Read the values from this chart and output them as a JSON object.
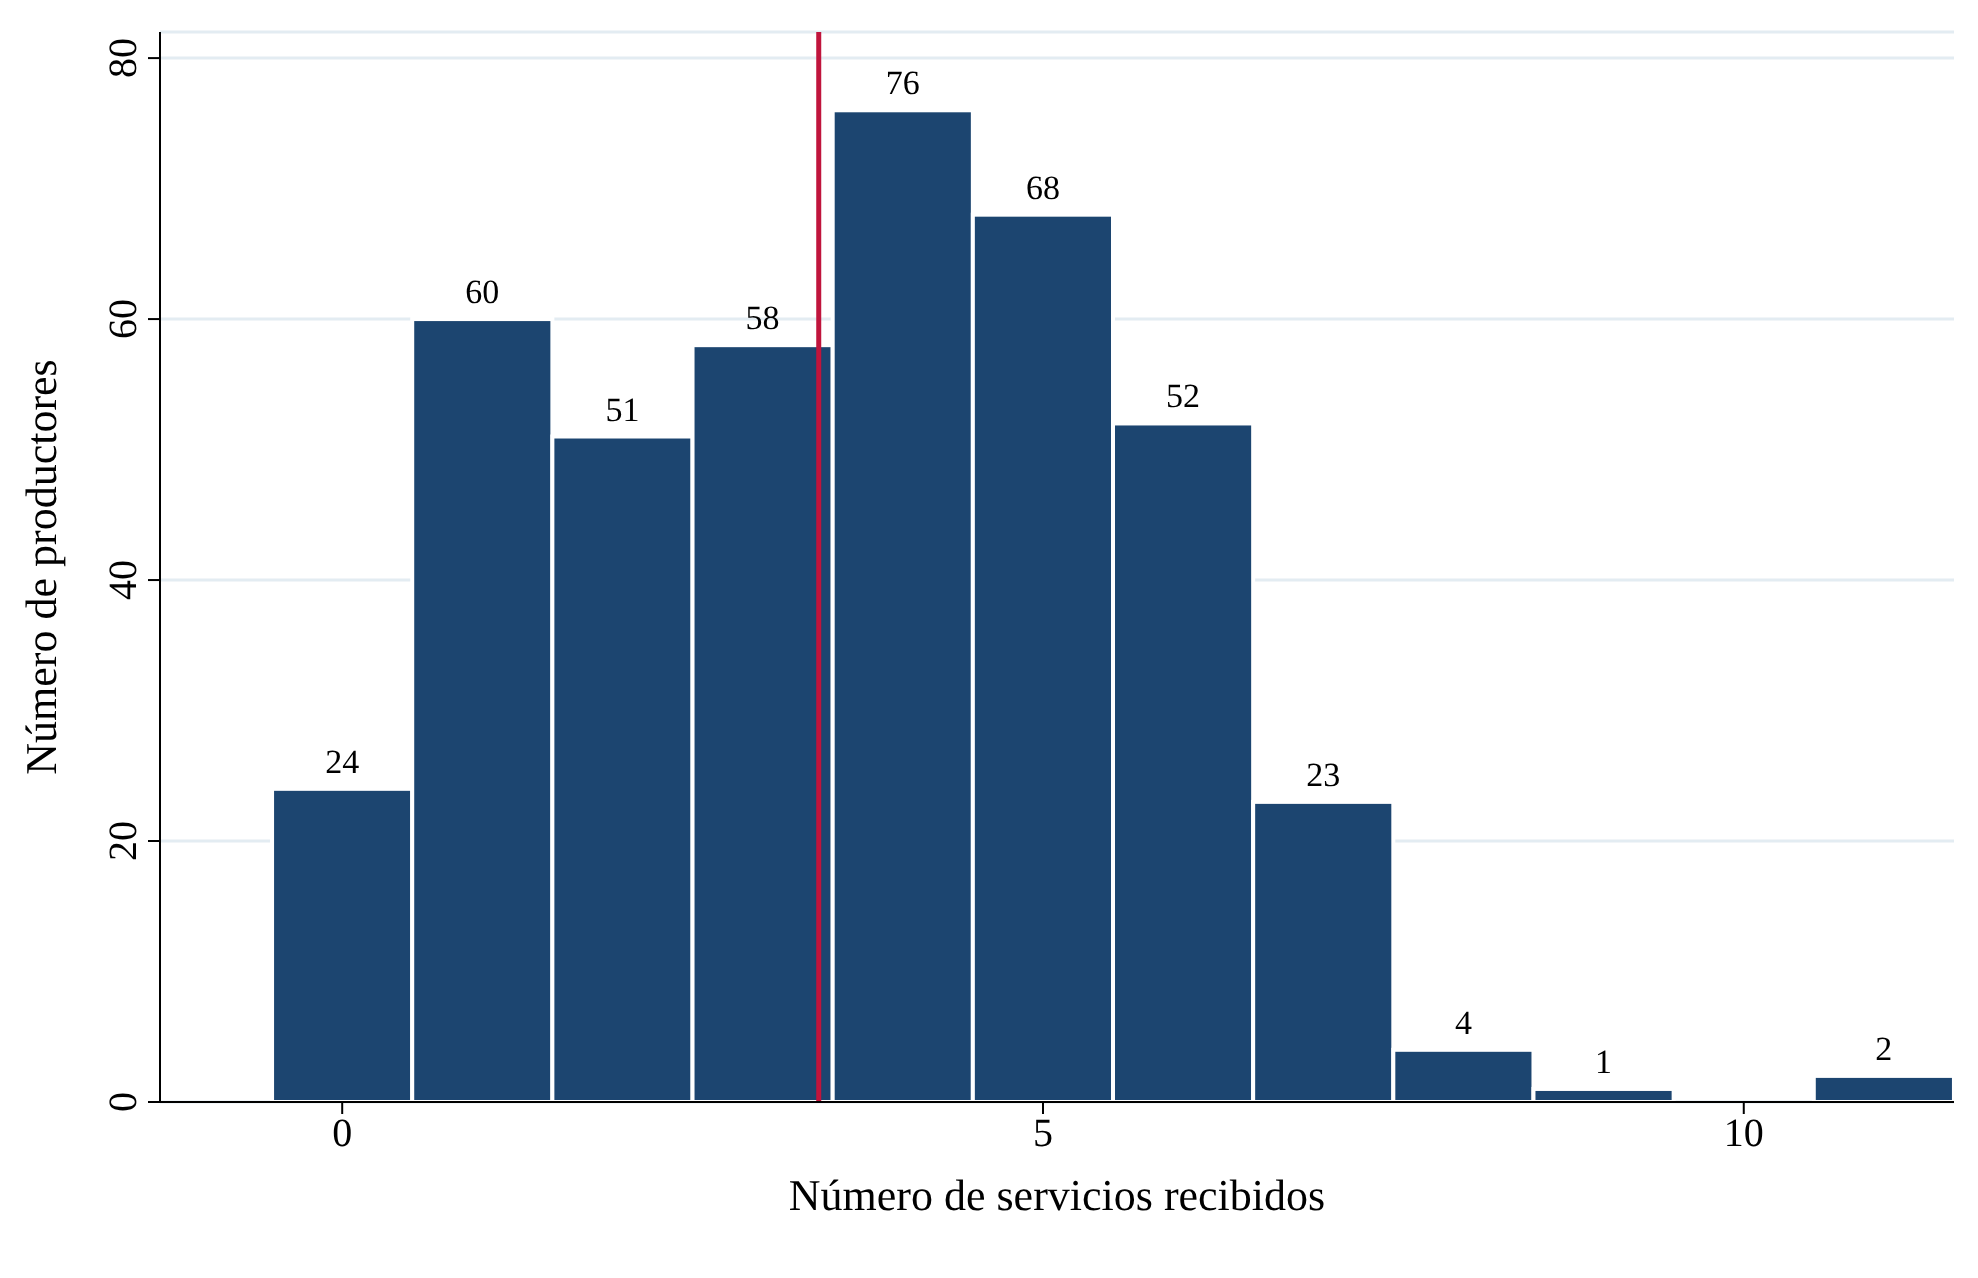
{
  "chart_data": {
    "type": "histogram",
    "xlabel": "Número de servicios recibidos",
    "ylabel": "Número de productores",
    "bins": [
      -0.5,
      0.5,
      1.5,
      2.5,
      3.5,
      4.5,
      5.5,
      6.5,
      7.5,
      8.5,
      9.5,
      10.5,
      11.5
    ],
    "values": [
      24,
      60,
      51,
      58,
      76,
      68,
      52,
      23,
      4,
      1,
      0,
      2
    ],
    "value_labels": [
      "24",
      "60",
      "51",
      "58",
      "76",
      "68",
      "52",
      "23",
      "4",
      "1",
      null,
      "2"
    ],
    "color": "#1c4570",
    "xlim": [
      -1.3,
      11.5
    ],
    "xticks": [
      0,
      5,
      10
    ],
    "ylim": [
      0,
      82
    ],
    "yticks": [
      0,
      20,
      40,
      60,
      80
    ],
    "grid": "y",
    "ref_lines": [
      {
        "axis": "x",
        "value": 3.4,
        "color": "#c0143c"
      }
    ]
  }
}
